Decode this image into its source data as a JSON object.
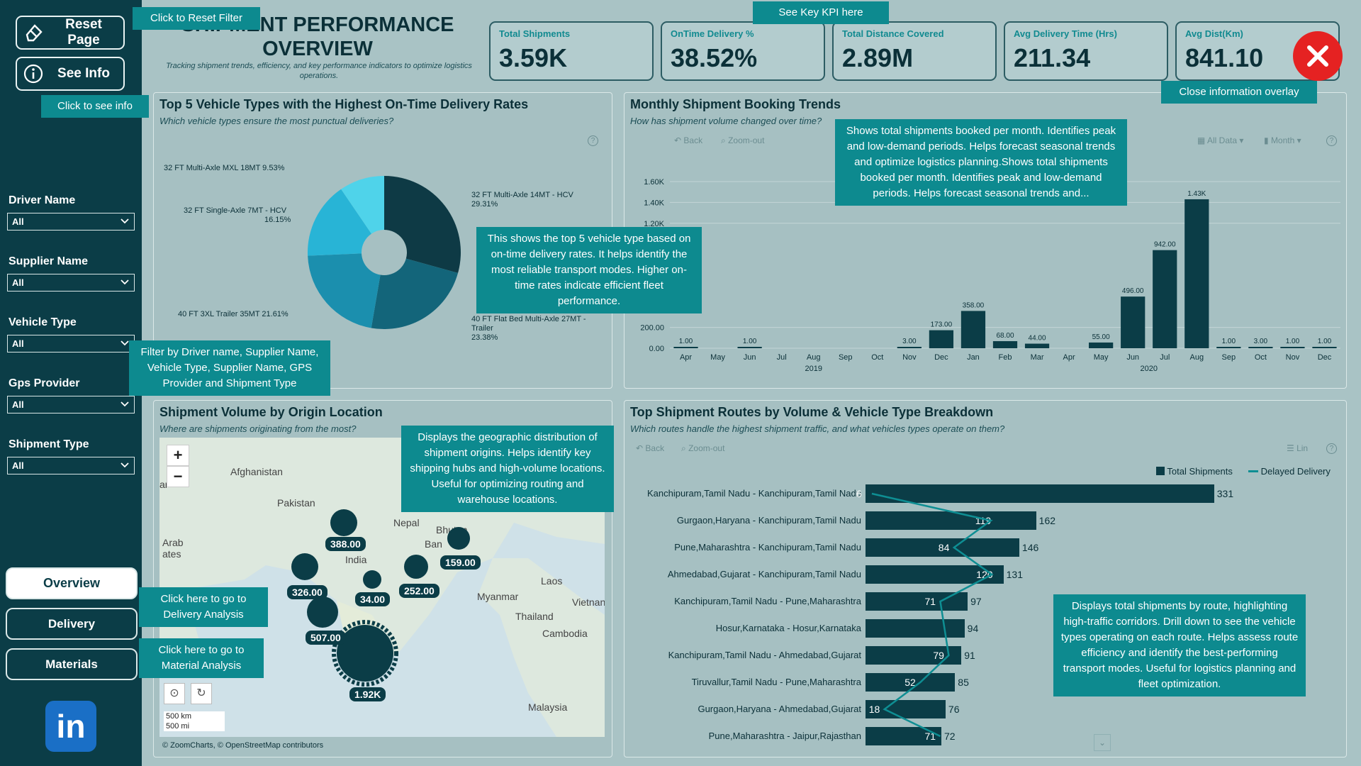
{
  "sidebar": {
    "reset_label": "Reset Page",
    "info_label": "See Info",
    "filters": [
      {
        "label": "Driver Name",
        "value": "All"
      },
      {
        "label": "Supplier Name",
        "value": "All"
      },
      {
        "label": "Vehicle Type",
        "value": "All"
      },
      {
        "label": "Gps Provider",
        "value": "All"
      },
      {
        "label": "Shipment Type",
        "value": "All"
      }
    ],
    "nav": [
      "Overview",
      "Delivery",
      "Materials"
    ],
    "linkedin": "in"
  },
  "header": {
    "title": "SHIPMENT PERFORMANCE OVERVIEW",
    "subtitle": "Tracking shipment trends, efficiency, and key performance indicators to optimize logistics operations."
  },
  "kpis": [
    {
      "label": "Total Shipments",
      "value": "3.59K"
    },
    {
      "label": "OnTime Delivery %",
      "value": "38.52%"
    },
    {
      "label": "Total Distance Covered",
      "value": "2.89M"
    },
    {
      "label": "Avg Delivery Time (Hrs)",
      "value": "211.34"
    },
    {
      "label": "Avg Dist(Km)",
      "value": "841.10"
    }
  ],
  "tips": {
    "reset": "Click to Reset Filter",
    "info": "Click to see info",
    "kpi": "See Key KPI here",
    "close": "Close information overlay",
    "filter": "Filter by Driver name, Supplier Name, Vehicle Type, Supplier Name, GPS Provider and Shipment Type",
    "pie": "This shows the top 5 vehicle type based on on-time delivery rates. It helps identify the most reliable transport modes. Higher on-time rates indicate efficient fleet performance.",
    "trend": "Shows total shipments booked per month. Identifies peak and low-demand periods. Helps forecast seasonal trends and optimize logistics planning.Shows total shipments booked per month. Identifies peak and low-demand periods. Helps forecast seasonal trends and...",
    "map": "Displays the geographic distribution of shipment origins. Helps identify key shipping hubs and high-volume locations. Useful for optimizing routing and warehouse locations.",
    "routes": "Displays total shipments by route, highlighting high-traffic corridors. Drill down to see the vehicle types operating on each route. Helps assess route efficiency and identify the best-performing transport modes. Useful for logistics planning and fleet optimization.",
    "delivery": "Click here to go to Delivery Analysis",
    "materials": "Click here to go to Material Analysis"
  },
  "pie_panel": {
    "title": "Top 5 Vehicle Types with the Highest On-Time Delivery Rates",
    "subtitle": "Which vehicle types ensure the most punctual deliveries?",
    "labels": [
      "32 FT Multi-Axle MXL 18MT 9.53%",
      "32 FT Single-Axle 7MT - HCV",
      "16.15%",
      "40 FT 3XL Trailer 35MT 21.61%",
      "32 FT Multi-Axle 14MT - HCV",
      "29.31%",
      "40 FT Flat Bed Multi-Axle 27MT -",
      "Trailer",
      "23.38%"
    ]
  },
  "trend_panel": {
    "title": "Monthly Shipment Booking Trends",
    "subtitle": "How has shipment volume changed over time?",
    "back": "Back",
    "zoom": "Zoom-out",
    "alldata": "All Data",
    "month": "Month",
    "year1": "2019",
    "year2": "2020"
  },
  "map_panel": {
    "title": "Shipment Volume by Origin Location",
    "subtitle": "Where are shipments originating from the most?",
    "countries": [
      "Afghanistan",
      "Pakistan",
      "Nepal",
      "Bhutan",
      "India",
      "Arab",
      "ates",
      "Laos",
      "Myanmar",
      "Thailand",
      "Vietnan",
      "Cambodia",
      "Malaysia",
      "Ban",
      "ar",
      "nka"
    ],
    "bubbles": [
      "388.00",
      "159.00",
      "326.00",
      "252.00",
      "34.00",
      "507.00",
      "1.92K"
    ],
    "scale_km": "500 km",
    "scale_mi": "500 mi",
    "credit": "© ZoomCharts, © OpenStreetMap contributors"
  },
  "routes_panel": {
    "title": "Top Shipment Routes by Volume & Vehicle Type Breakdown",
    "subtitle": "Which routes handle the highest shipment traffic, and what vehicles types operate on them?",
    "back": "Back",
    "zoom": "Zoom-out",
    "lin": "Lin",
    "legend_total": "Total Shipments",
    "legend_delayed": "Delayed Delivery"
  },
  "chart_data": [
    {
      "type": "pie",
      "title": "Top 5 Vehicle Types with the Highest On-Time Delivery Rates",
      "categories": [
        "32 FT Multi-Axle 14MT - HCV",
        "40 FT Flat Bed Multi-Axle 27MT - Trailer",
        "40 FT 3XL Trailer 35MT",
        "32 FT Single-Axle 7MT - HCV",
        "32 FT Multi-Axle MXL 18MT"
      ],
      "values": [
        29.31,
        23.38,
        21.61,
        16.15,
        9.53
      ],
      "colors": [
        "#0e3a45",
        "#13657a",
        "#1b8fae",
        "#28b4d6",
        "#4fd3ea"
      ]
    },
    {
      "type": "bar",
      "title": "Monthly Shipment Booking Trends",
      "categories": [
        "Apr",
        "May",
        "Jun",
        "Jul",
        "Aug",
        "Sep",
        "Oct",
        "Nov",
        "Dec",
        "Jan",
        "Feb",
        "Mar",
        "Apr",
        "May",
        "Jun",
        "Jul",
        "Aug",
        "Sep",
        "Oct",
        "Nov",
        "Dec"
      ],
      "values": [
        1,
        0,
        1,
        0,
        0,
        0,
        0,
        3,
        173,
        358,
        68,
        44,
        0,
        55,
        496,
        942,
        1430,
        1,
        3,
        1,
        1
      ],
      "labels": [
        "1.00",
        "",
        "1.00",
        "",
        "",
        "",
        "",
        "3.00",
        "173.00",
        "358.00",
        "68.00",
        "44.00",
        "",
        "55.00",
        "496.00",
        "942.00",
        "1.43K",
        "1.00",
        "3.00",
        "1.00",
        "1.00"
      ],
      "ylim": [
        0,
        1600
      ],
      "yticks": [
        "0.00",
        "200.00",
        "1.20K",
        "1.40K",
        "1.60K"
      ]
    },
    {
      "type": "bar",
      "title": "Top Shipment Routes by Volume & Vehicle Type Breakdown",
      "categories": [
        "Kanchipuram,Tamil Nadu - Kanchipuram,Tamil Nadu",
        "Gurgaon,Haryana - Kanchipuram,Tamil Nadu",
        "Pune,Maharashtra - Kanchipuram,Tamil Nadu",
        "Ahmedabad,Gujarat - Kanchipuram,Tamil Nadu",
        "Kanchipuram,Tamil Nadu - Pune,Maharashtra",
        "Hosur,Karnataka - Hosur,Karnataka",
        "Kanchipuram,Tamil Nadu - Ahmedabad,Gujarat",
        "Tiruvallur,Tamil Nadu - Pune,Maharashtra",
        "Gurgaon,Haryana - Ahmedabad,Gujarat",
        "Pune,Maharashtra - Jaipur,Rajasthan"
      ],
      "series": [
        {
          "name": "Total Shipments",
          "values": [
            331,
            162,
            146,
            131,
            97,
            94,
            91,
            85,
            76,
            72
          ]
        },
        {
          "name": "Delayed Delivery",
          "values": [
            6,
            119,
            84,
            120,
            71,
            null,
            79,
            52,
            18,
            71
          ]
        }
      ]
    }
  ]
}
